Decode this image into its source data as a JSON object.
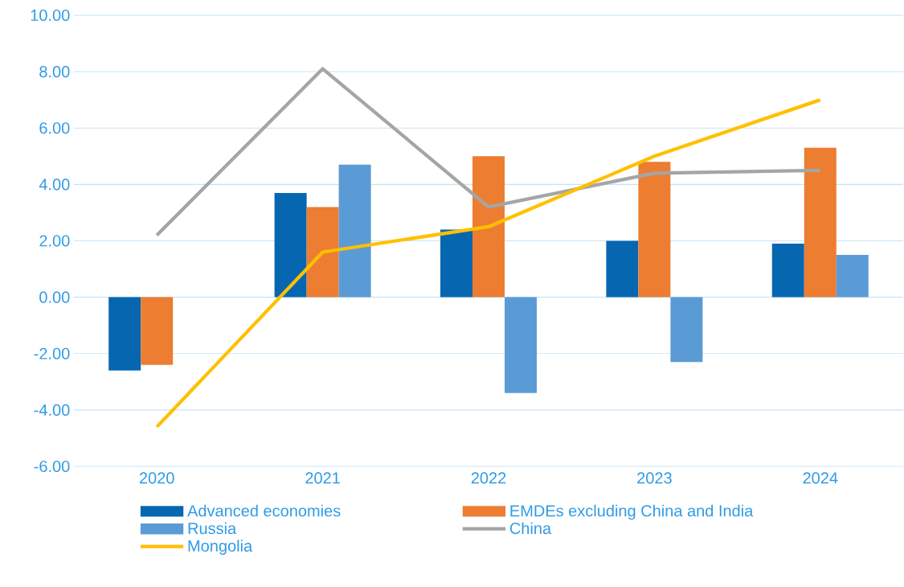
{
  "chart_data": {
    "type": "bar",
    "categories": [
      "2020",
      "2021",
      "2022",
      "2023",
      "2024"
    ],
    "series": [
      {
        "name": "Advanced economies",
        "color": "#0766b0",
        "values": [
          -2.6,
          3.7,
          2.4,
          2.0,
          1.9
        ]
      },
      {
        "name": "EMDEs excluding China and India",
        "color": "#ed7d31",
        "values": [
          -2.4,
          3.2,
          5.0,
          4.8,
          5.3
        ]
      },
      {
        "name": "Russia",
        "color": "#5b9bd5",
        "values": [
          null,
          4.7,
          -3.4,
          -2.3,
          1.5
        ]
      },
      {
        "name": "China",
        "type": "line",
        "color": "#a5a5a5",
        "values": [
          2.2,
          8.1,
          3.2,
          4.4,
          4.5
        ]
      },
      {
        "name": "Mongolia",
        "type": "line",
        "color": "#ffc000",
        "values": [
          -4.6,
          1.6,
          2.5,
          5.0,
          7.0
        ]
      }
    ],
    "ylim": [
      -6,
      10
    ],
    "yticks": [
      {
        "value": -6,
        "label": "-6.00"
      },
      {
        "value": -4,
        "label": "-4.00"
      },
      {
        "value": -2,
        "label": "-2.00"
      },
      {
        "value": 0,
        "label": "0.00"
      },
      {
        "value": 2,
        "label": "2.00"
      },
      {
        "value": 4,
        "label": "4.00"
      },
      {
        "value": 6,
        "label": "6.00"
      },
      {
        "value": 8,
        "label": "8.00"
      },
      {
        "value": 10,
        "label": "10.00"
      }
    ],
    "grid": "y",
    "legend": "bottom",
    "marker": "none",
    "line_style": "solid"
  }
}
